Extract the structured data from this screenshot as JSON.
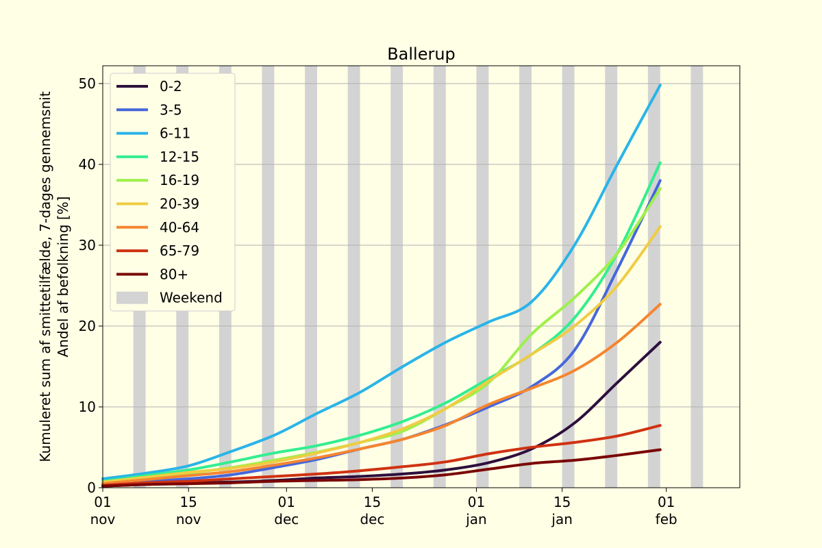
{
  "chart_data": {
    "type": "line",
    "title": "Ballerup",
    "ylabel_line1": "Kumuleret sum af smittetilfælde, 7-dages gennemsnit",
    "ylabel_line2": "Andel af befolkning [%]",
    "xlabel": "",
    "x_domain": [
      "2021-11-01",
      "2022-02-13"
    ],
    "ylim": [
      0,
      52.2
    ],
    "yticks": [
      0,
      10,
      20,
      30,
      40,
      50
    ],
    "xticks": [
      {
        "date": "2021-11-01",
        "day": "01",
        "month": "nov"
      },
      {
        "date": "2021-11-15",
        "day": "15",
        "month": "nov"
      },
      {
        "date": "2021-12-01",
        "day": "01",
        "month": "dec"
      },
      {
        "date": "2021-12-15",
        "day": "15",
        "month": "dec"
      },
      {
        "date": "2022-01-01",
        "day": "01",
        "month": "jan"
      },
      {
        "date": "2022-01-15",
        "day": "15",
        "month": "jan"
      },
      {
        "date": "2022-02-01",
        "day": "01",
        "month": "feb"
      }
    ],
    "grid": "horizontal",
    "legend_position": "top-left",
    "weekend": {
      "label": "Weekend",
      "color": "#d3d3d3",
      "start_dates": [
        "2021-11-06",
        "2021-11-13",
        "2021-11-20",
        "2021-11-27",
        "2021-12-04",
        "2021-12-11",
        "2021-12-18",
        "2021-12-25",
        "2022-01-01",
        "2022-01-08",
        "2022-01-15",
        "2022-01-22",
        "2022-01-29",
        "2022-02-05"
      ]
    },
    "x": [
      "2021-11-01",
      "2021-11-08",
      "2021-11-15",
      "2021-11-22",
      "2021-11-29",
      "2021-12-06",
      "2021-12-13",
      "2021-12-20",
      "2021-12-27",
      "2022-01-03",
      "2022-01-10",
      "2022-01-17",
      "2022-01-24",
      "2022-01-31"
    ],
    "series": [
      {
        "name": "0-2",
        "color": "#2d0f3d",
        "values": [
          0.2,
          0.4,
          0.6,
          0.7,
          0.9,
          1.2,
          1.4,
          1.7,
          2.2,
          3.1,
          4.8,
          8.0,
          13.0,
          18.0
        ]
      },
      {
        "name": "3-5",
        "color": "#4567db",
        "values": [
          0.5,
          0.8,
          1.1,
          1.6,
          2.5,
          3.5,
          4.8,
          6.0,
          7.8,
          10.0,
          12.5,
          17.0,
          27.0,
          38.0
        ]
      },
      {
        "name": "6-11",
        "color": "#2ab4e8",
        "values": [
          1.1,
          1.8,
          2.7,
          4.5,
          6.5,
          9.2,
          11.8,
          15.0,
          18.0,
          20.5,
          23.0,
          30.0,
          40.0,
          49.8
        ]
      },
      {
        "name": "12-15",
        "color": "#33ee90",
        "values": [
          0.8,
          1.5,
          2.2,
          3.2,
          4.3,
          5.2,
          6.5,
          8.2,
          10.5,
          13.5,
          16.5,
          21.0,
          29.0,
          40.2
        ]
      },
      {
        "name": "16-19",
        "color": "#9ef04a",
        "values": [
          0.6,
          1.2,
          1.8,
          2.5,
          3.4,
          4.4,
          5.6,
          7.0,
          9.8,
          13.0,
          19.0,
          23.5,
          29.0,
          37.0
        ]
      },
      {
        "name": "20-39",
        "color": "#efcc44",
        "values": [
          0.7,
          1.3,
          1.9,
          2.4,
          3.2,
          4.3,
          5.6,
          7.3,
          9.8,
          13.2,
          16.5,
          20.0,
          25.0,
          32.3
        ]
      },
      {
        "name": "40-64",
        "color": "#f58530",
        "values": [
          0.5,
          1.0,
          1.5,
          2.0,
          2.8,
          3.7,
          4.8,
          6.0,
          7.7,
          10.3,
          12.3,
          14.5,
          18.0,
          22.7
        ]
      },
      {
        "name": "65-79",
        "color": "#cf3212",
        "values": [
          0.3,
          0.6,
          0.8,
          1.1,
          1.4,
          1.7,
          2.1,
          2.6,
          3.2,
          4.2,
          5.0,
          5.6,
          6.4,
          7.7
        ]
      },
      {
        "name": "80+",
        "color": "#7a0505",
        "values": [
          0.2,
          0.4,
          0.5,
          0.6,
          0.8,
          0.9,
          1.0,
          1.2,
          1.6,
          2.3,
          3.0,
          3.4,
          4.0,
          4.7
        ]
      }
    ]
  }
}
